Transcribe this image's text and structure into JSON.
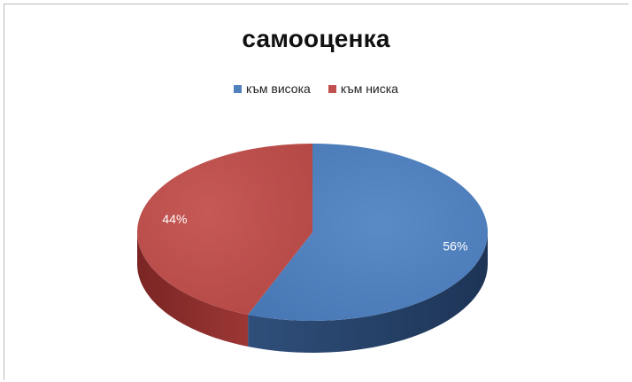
{
  "chart_data": {
    "type": "pie",
    "title": "самооценка",
    "categories": [
      "към висока",
      "към ниска"
    ],
    "values": [
      56,
      44
    ],
    "data_labels": [
      "56%",
      "44%"
    ],
    "colors": [
      "#4f81bd",
      "#c0504d"
    ],
    "legend_position": "top",
    "style": "3d"
  }
}
